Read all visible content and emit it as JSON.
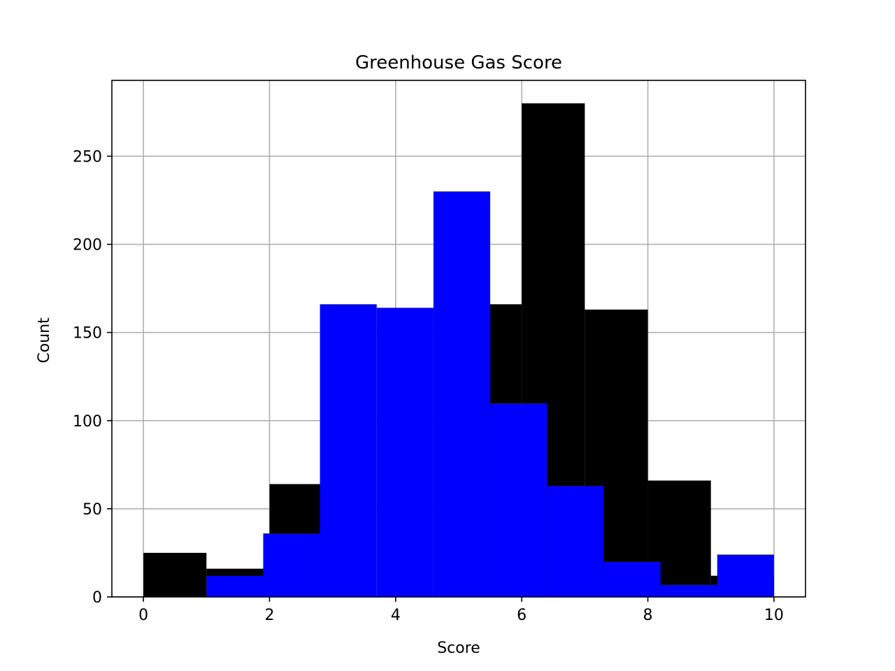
{
  "chart_data": {
    "type": "bar",
    "title": "Greenhouse Gas Score",
    "xlabel": "Score",
    "ylabel": "Count",
    "xlim": [
      -0.5,
      10.5
    ],
    "ylim": [
      0,
      293
    ],
    "xticks": [
      0,
      2,
      4,
      6,
      8,
      10
    ],
    "yticks": [
      0,
      50,
      100,
      150,
      200,
      250
    ],
    "grid": true,
    "series": [
      {
        "color": "#000000",
        "bins": [
          {
            "x0": 0.0,
            "x1": 1.0,
            "count": 25
          },
          {
            "x0": 1.0,
            "x1": 2.0,
            "count": 16
          },
          {
            "x0": 2.0,
            "x1": 3.0,
            "count": 64
          },
          {
            "x0": 3.0,
            "x1": 4.0,
            "count": 0
          },
          {
            "x0": 4.0,
            "x1": 5.0,
            "count": 0
          },
          {
            "x0": 5.0,
            "x1": 6.0,
            "count": 166
          },
          {
            "x0": 6.0,
            "x1": 7.0,
            "count": 280
          },
          {
            "x0": 7.0,
            "x1": 8.0,
            "count": 163
          },
          {
            "x0": 8.0,
            "x1": 9.0,
            "count": 66
          },
          {
            "x0": 9.0,
            "x1": 10.0,
            "count": 12
          }
        ]
      },
      {
        "color": "#0000ff",
        "bins": [
          {
            "x0": 1.0,
            "x1": 1.9,
            "count": 12
          },
          {
            "x0": 1.9,
            "x1": 2.8,
            "count": 36
          },
          {
            "x0": 2.8,
            "x1": 3.7,
            "count": 166
          },
          {
            "x0": 3.7,
            "x1": 4.6,
            "count": 164
          },
          {
            "x0": 4.6,
            "x1": 5.5,
            "count": 230
          },
          {
            "x0": 5.5,
            "x1": 6.4,
            "count": 110
          },
          {
            "x0": 6.4,
            "x1": 7.3,
            "count": 63
          },
          {
            "x0": 7.3,
            "x1": 8.2,
            "count": 20
          },
          {
            "x0": 8.2,
            "x1": 9.1,
            "count": 7
          },
          {
            "x0": 9.1,
            "x1": 10.0,
            "count": 24
          }
        ]
      }
    ]
  }
}
